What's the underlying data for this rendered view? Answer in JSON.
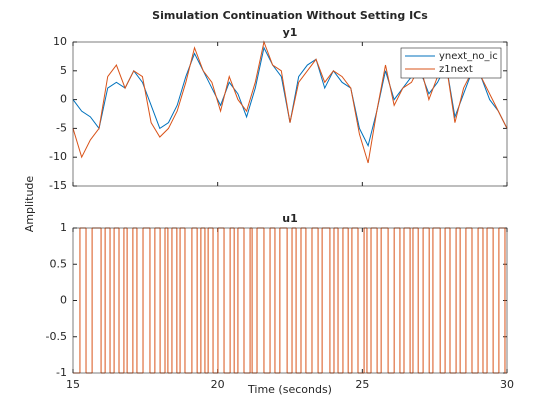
{
  "title": "Simulation Continuation Without Setting ICs",
  "xlabel": "Time (seconds)",
  "ylabel": "Amplitude",
  "chart_data": [
    {
      "type": "line",
      "title": "y1",
      "legend": "upper right",
      "xlim": [
        15,
        30
      ],
      "ylim": [
        -15,
        10
      ],
      "yticks": [
        -15,
        -10,
        -5,
        0,
        5,
        10
      ],
      "x": [
        15,
        15.3,
        15.6,
        15.9,
        16.2,
        16.5,
        16.8,
        17.1,
        17.4,
        17.7,
        18,
        18.3,
        18.6,
        18.9,
        19.2,
        19.5,
        19.8,
        20.1,
        20.4,
        20.7,
        21,
        21.3,
        21.6,
        21.9,
        22.2,
        22.5,
        22.8,
        23.1,
        23.4,
        23.7,
        24,
        24.3,
        24.6,
        24.9,
        25.2,
        25.5,
        25.8,
        26.1,
        26.4,
        26.7,
        27,
        27.3,
        27.6,
        27.9,
        28.2,
        28.5,
        28.8,
        29.1,
        29.4,
        29.7,
        30
      ],
      "series": [
        {
          "name": "ynext_no_ic",
          "color": "#0072BD",
          "values": [
            0,
            -2,
            -3,
            -5,
            2,
            3,
            2,
            5,
            3,
            -1,
            -5,
            -4,
            -1,
            4,
            8,
            5,
            2,
            -1,
            3,
            1,
            -3,
            2,
            9,
            6,
            4,
            -4,
            4,
            6,
            7,
            2,
            5,
            3,
            2,
            -5,
            -8,
            -2,
            5,
            0,
            2,
            4,
            5,
            1,
            3,
            6,
            -3,
            1,
            5,
            4,
            0,
            -2,
            -5
          ]
        },
        {
          "name": "z1next",
          "color": "#D95319",
          "values": [
            -5,
            -10,
            -7,
            -5,
            4,
            6,
            2,
            5,
            4,
            -4,
            -6.5,
            -5,
            -2,
            3,
            9,
            5,
            3,
            -2,
            4,
            0,
            -2,
            3,
            10,
            6,
            5,
            -4,
            3,
            5,
            7,
            3,
            5,
            4,
            2,
            -6,
            -11,
            -2,
            6,
            -1,
            2,
            3,
            6,
            0,
            4,
            6,
            -4,
            2,
            5,
            4,
            1,
            -2,
            -5
          ]
        }
      ]
    },
    {
      "type": "stairs",
      "title": "u1",
      "color": "#D95319",
      "xlim": [
        15,
        30
      ],
      "xticks": [
        15,
        20,
        25,
        30
      ],
      "ylim": [
        -1,
        1
      ],
      "yticks": [
        -1,
        -0.5,
        0,
        0.5,
        1
      ],
      "x": [
        15,
        15.24,
        15.45,
        15.66,
        15.97,
        16.11,
        16.28,
        16.42,
        16.59,
        16.76,
        16.87,
        17.07,
        17.21,
        17.42,
        17.66,
        17.83,
        18.01,
        18.18,
        18.28,
        18.42,
        18.59,
        18.7,
        18.87,
        19.11,
        19.29,
        19.42,
        19.56,
        19.67,
        19.84,
        20.01,
        20.22,
        20.43,
        20.57,
        20.7,
        20.91,
        21.12,
        21.19,
        21.36,
        21.6,
        21.81,
        21.98,
        22.15,
        22.4,
        22.57,
        22.71,
        22.88,
        23.05,
        23.26,
        23.47,
        23.61,
        23.88,
        24.02,
        24.16,
        24.33,
        24.51,
        24.64,
        24.85,
        25.06,
        25.16,
        25.3,
        25.51,
        25.65,
        25.89,
        26.1,
        26.3,
        26.44,
        26.65,
        26.75,
        26.93,
        27.1,
        27.31,
        27.44,
        27.69,
        27.86,
        28.03,
        28.24,
        28.38,
        28.58,
        28.79,
        29,
        29.17,
        29.31,
        29.52,
        29.72,
        29.93
      ],
      "values": [
        -1,
        1,
        -1,
        1,
        -1,
        1,
        -1,
        1,
        -1,
        1,
        -1,
        1,
        -1,
        1,
        -1,
        1,
        -1,
        1,
        -1,
        1,
        -1,
        1,
        -1,
        1,
        -1,
        1,
        -1,
        1,
        -1,
        1,
        -1,
        1,
        -1,
        1,
        -1,
        1,
        -1,
        1,
        -1,
        1,
        -1,
        1,
        -1,
        1,
        -1,
        1,
        -1,
        1,
        -1,
        1,
        -1,
        1,
        -1,
        1,
        -1,
        1,
        -1,
        1,
        -1,
        1,
        -1,
        1,
        -1,
        1,
        -1,
        1,
        -1,
        1,
        -1,
        1,
        -1,
        1,
        -1,
        1,
        -1,
        1,
        -1,
        1,
        -1,
        1,
        -1,
        1,
        -1,
        1,
        -1
      ]
    }
  ]
}
